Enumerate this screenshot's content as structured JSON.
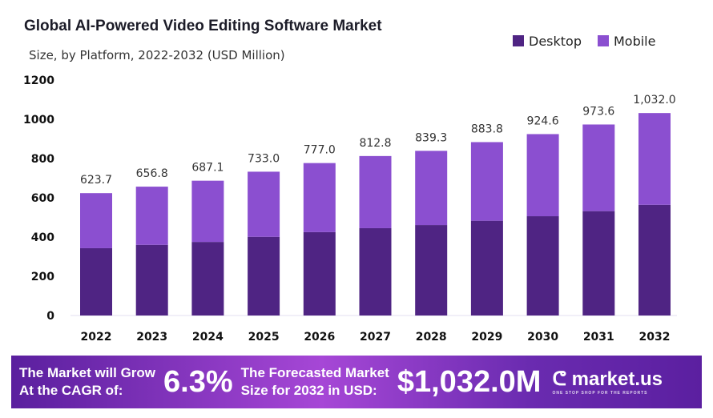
{
  "chart_data": {
    "type": "bar",
    "stacked": true,
    "title": "Global AI-Powered Video Editing Software Market",
    "subtitle": "Size, by Platform, 2022-2032 (USD Million)",
    "categories": [
      "2022",
      "2023",
      "2024",
      "2025",
      "2026",
      "2027",
      "2028",
      "2029",
      "2030",
      "2031",
      "2032"
    ],
    "series": [
      {
        "name": "Desktop",
        "color": "#4f2483",
        "values": [
          343,
          360,
          375,
          401,
          425,
          445,
          461,
          483,
          506,
          532,
          564
        ]
      },
      {
        "name": "Mobile",
        "color": "#8b4fd0",
        "values": [
          280.7,
          296.8,
          312.1,
          332.0,
          352.0,
          367.8,
          378.3,
          400.8,
          418.6,
          441.6,
          468.0
        ]
      }
    ],
    "totals_labels": [
      "623.7",
      "656.8",
      "687.1",
      "733.0",
      "777.0",
      "812.8",
      "839.3",
      "883.8",
      "924.6",
      "973.6",
      "1,032.0"
    ],
    "yticks": [
      "0",
      "200",
      "400",
      "600",
      "800",
      "1000",
      "1200"
    ],
    "ylim": [
      0,
      1200
    ],
    "grid": false,
    "legend": "top-right"
  },
  "footer": {
    "cagr_label_1": "The Market will Grow",
    "cagr_label_2": "At the CAGR of:",
    "cagr_value": "6.3%",
    "forecast_label_1": "The Forecasted Market",
    "forecast_label_2": "Size for 2032 in USD:",
    "forecast_value": "$1,032.0M",
    "logo": "market.us",
    "logo_tagline": "ONE STOP SHOP FOR THE REPORTS"
  }
}
